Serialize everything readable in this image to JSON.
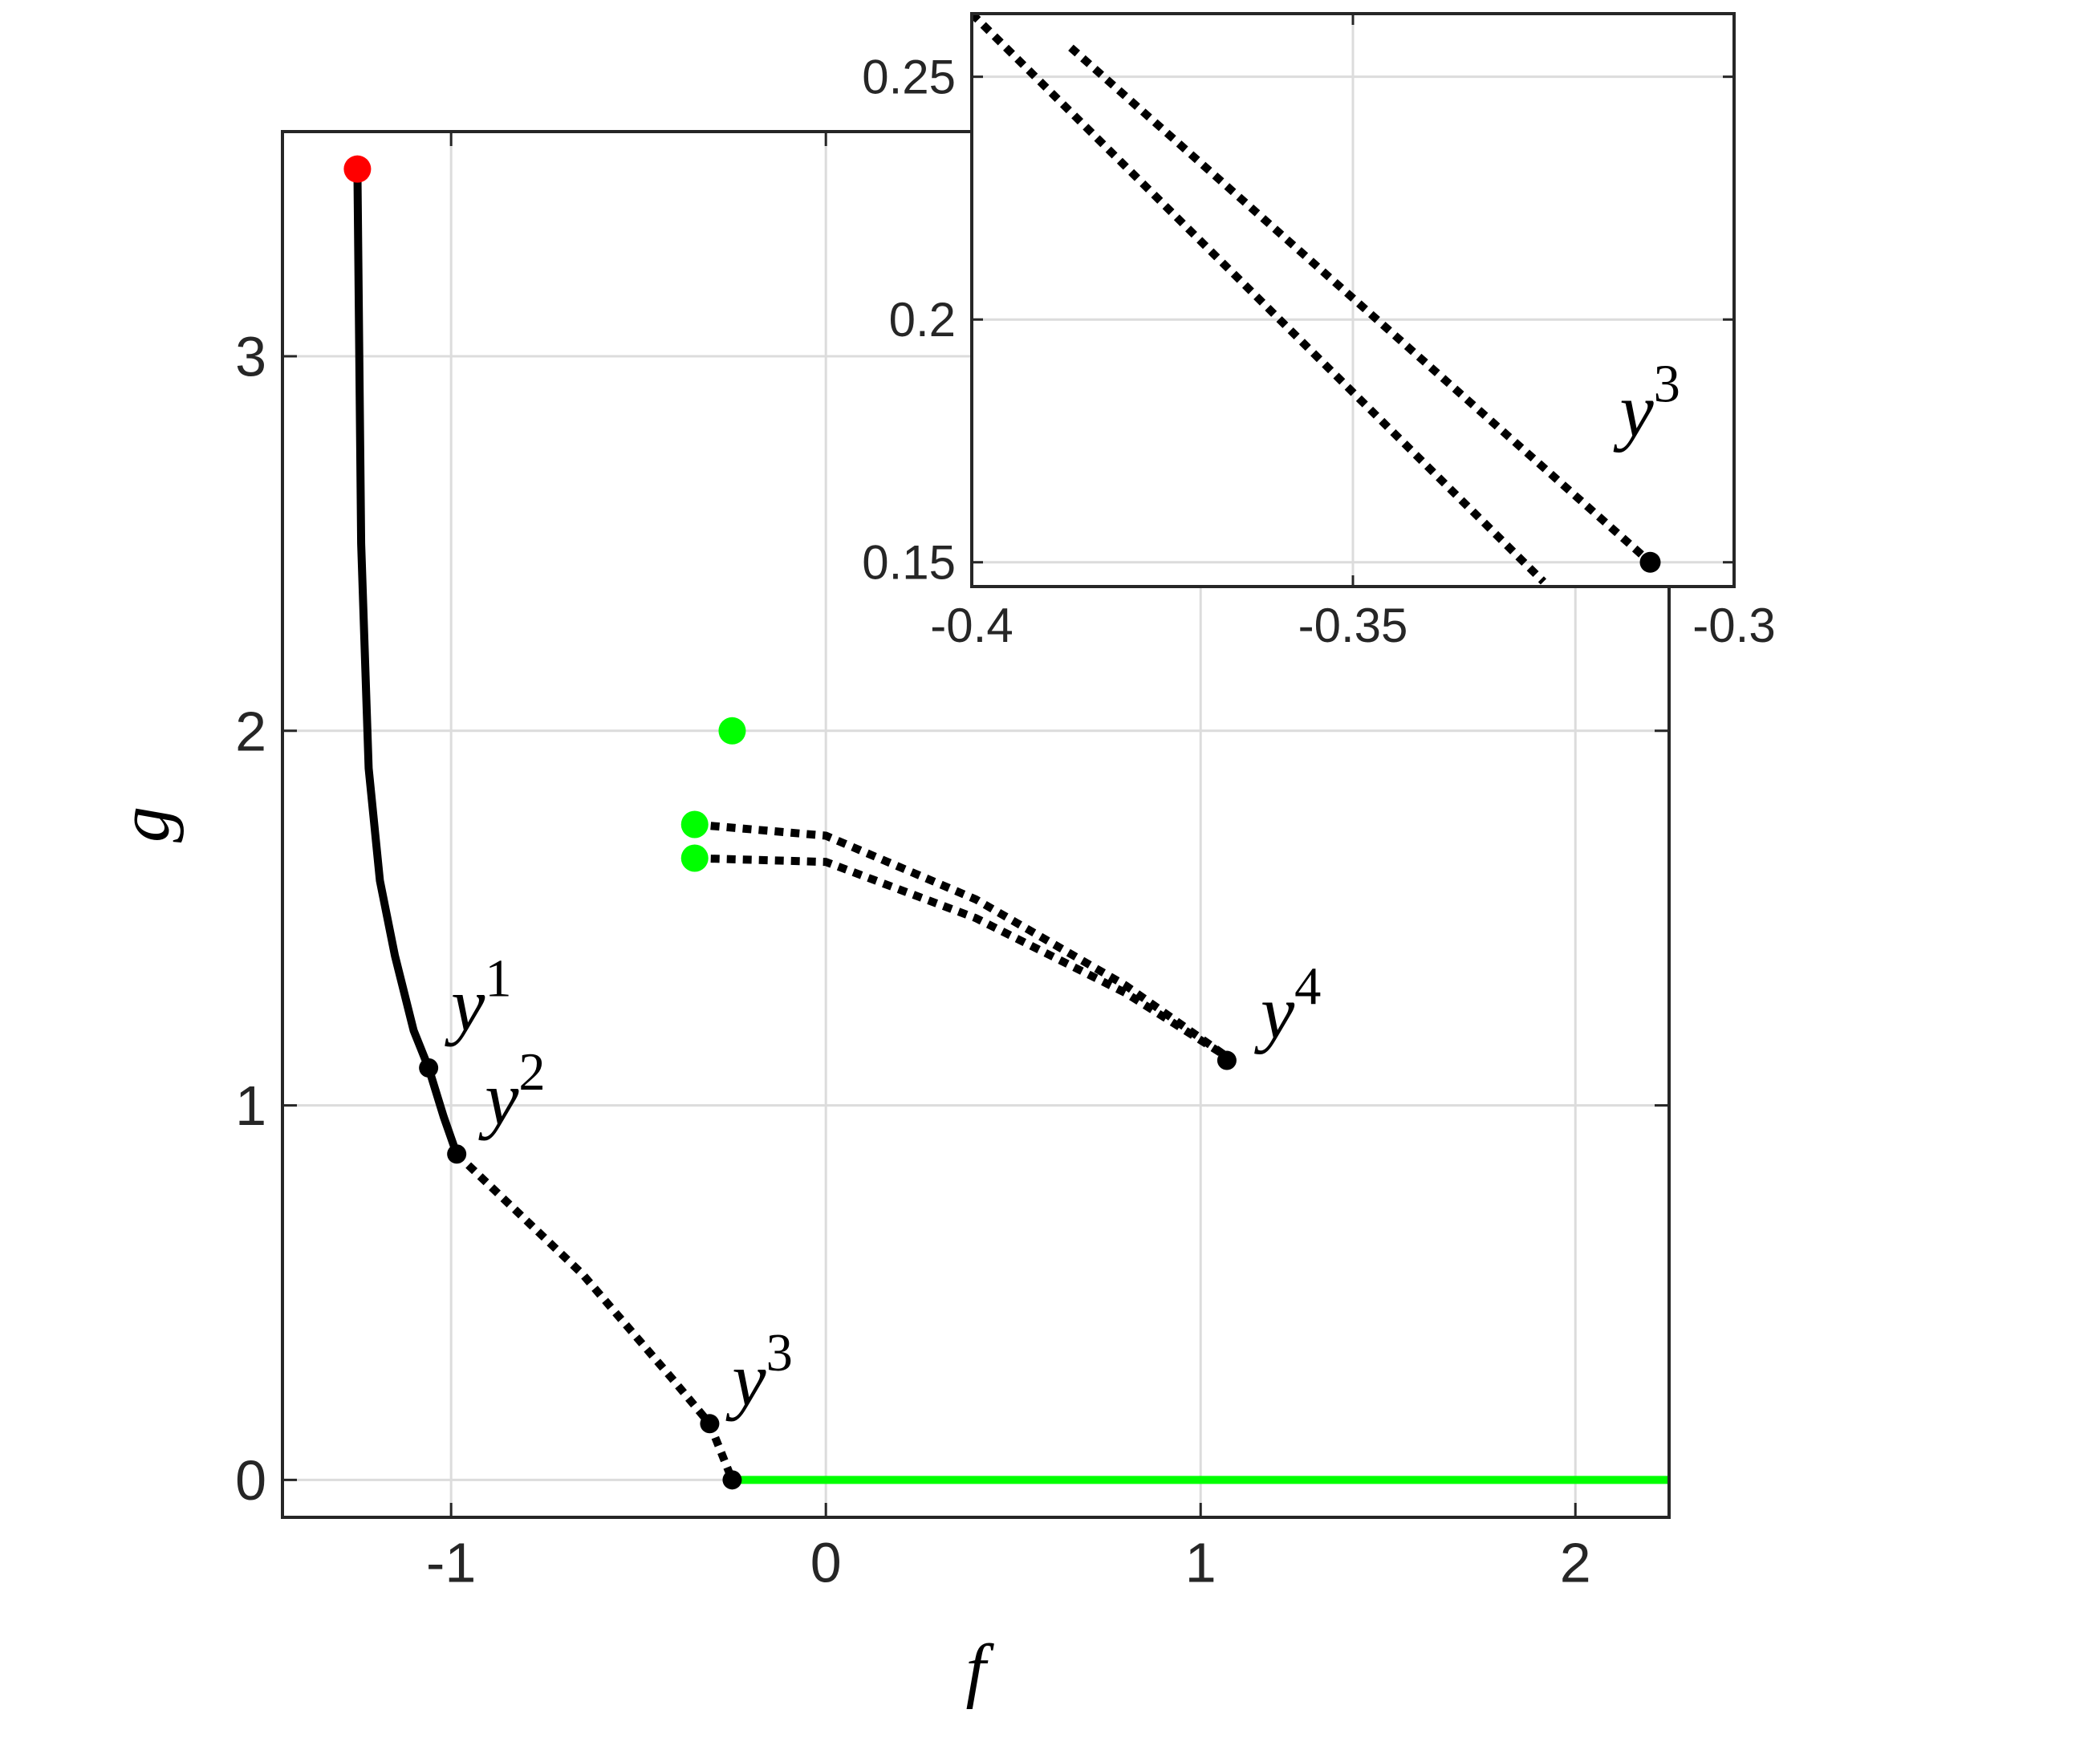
{
  "chart_data": [
    {
      "type": "line",
      "xlabel": "f",
      "ylabel": "g",
      "xlim": [
        -1.45,
        2.25
      ],
      "ylim": [
        -0.1,
        3.6
      ],
      "xticks": [
        -1,
        0,
        1,
        2
      ],
      "yticks": [
        0,
        1,
        2,
        3
      ],
      "grid": true,
      "series": [
        {
          "x": [
            -1.25,
            -1.245,
            -1.24,
            -1.22,
            -1.19,
            -1.15,
            -1.1,
            -1.06,
            -1.02,
            -0.985
          ],
          "values": [
            3.5,
            3.0,
            2.5,
            1.9,
            1.6,
            1.4,
            1.2,
            1.1,
            0.97,
            0.87
          ],
          "color": "#000000",
          "style": "solid"
        },
        {
          "x": [
            -0.985,
            -0.65,
            -0.41,
            -0.31,
            -0.25
          ],
          "values": [
            0.87,
            0.55,
            0.27,
            0.15,
            0
          ],
          "color": "#000000",
          "style": "dotted"
        },
        {
          "x": [
            -0.35,
            0,
            0.4,
            0.8,
            1.07
          ],
          "values": [
            1.75,
            1.72,
            1.55,
            1.32,
            1.13
          ],
          "color": "#000000",
          "style": "dotted"
        },
        {
          "x": [
            -0.35,
            0,
            0.4,
            0.8,
            1.07
          ],
          "values": [
            1.66,
            1.65,
            1.5,
            1.3,
            1.13
          ],
          "color": "#000000",
          "style": "dotted"
        },
        {
          "x": [
            -0.25,
            2.25
          ],
          "values": [
            0,
            0
          ],
          "color": "#00ff00",
          "style": "solid"
        },
        {
          "x": [
            -1.25
          ],
          "values": [
            3.5
          ],
          "color": "#ff0000",
          "style": "marker"
        },
        {
          "x": [
            -0.25,
            -0.35,
            -0.35
          ],
          "values": [
            2.0,
            1.75,
            1.66
          ],
          "color": "#00ff00",
          "style": "marker"
        },
        {
          "x": [
            -1.06,
            -0.985,
            -0.31,
            -0.25,
            1.07
          ],
          "values": [
            1.1,
            0.87,
            0.15,
            0,
            1.12
          ],
          "color": "#000000",
          "style": "dot"
        }
      ],
      "annotations": [
        {
          "text": "y",
          "sup": "1"
        },
        {
          "text": "y",
          "sup": "2"
        },
        {
          "text": "y",
          "sup": "3"
        },
        {
          "text": "y",
          "sup": "4"
        }
      ]
    },
    {
      "type": "line",
      "xlim": [
        -0.4,
        -0.3
      ],
      "ylim": [
        0.145,
        0.263
      ],
      "xticks": [
        -0.4,
        -0.35,
        -0.3
      ],
      "yticks": [
        0.15,
        0.2,
        0.25
      ],
      "grid": true,
      "series": [
        {
          "x": [
            -0.4,
            -0.325
          ],
          "values": [
            0.263,
            0.146
          ],
          "color": "#000000",
          "style": "dotted"
        },
        {
          "x": [
            -0.387,
            -0.311
          ],
          "values": [
            0.256,
            0.15
          ],
          "color": "#000000",
          "style": "dotted"
        },
        {
          "x": [
            -0.311
          ],
          "values": [
            0.15
          ],
          "color": "#000000",
          "style": "dot"
        }
      ],
      "annotations": [
        {
          "text": "y",
          "sup": "3"
        }
      ]
    }
  ]
}
